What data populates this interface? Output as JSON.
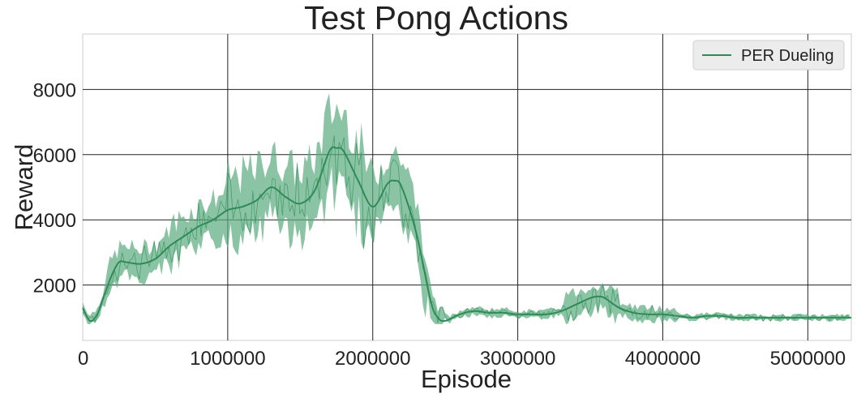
{
  "chart_data": {
    "type": "line",
    "title": "Test Pong Actions",
    "xlabel": "Episode",
    "ylabel": "Reward",
    "xlim": [
      0,
      5300000
    ],
    "ylim": [
      300,
      9700
    ],
    "xticks": [
      0,
      1000000,
      2000000,
      3000000,
      4000000,
      5000000
    ],
    "xtick_labels": [
      "0",
      "1000000",
      "2000000",
      "3000000",
      "4000000",
      "5000000"
    ],
    "yticks": [
      2000,
      4000,
      6000,
      8000
    ],
    "ytick_labels": [
      "2000",
      "4000",
      "6000",
      "8000"
    ],
    "grid": true,
    "legend_position": "top-right",
    "colors": {
      "series": "#2e8b57",
      "band": "#5aab7e",
      "grid": "#222222",
      "frame": "#cccccc"
    },
    "series": [
      {
        "name": "PER Dueling",
        "x": [
          0,
          50000,
          100000,
          150000,
          200000,
          250000,
          300000,
          400000,
          500000,
          600000,
          700000,
          800000,
          900000,
          1000000,
          1100000,
          1200000,
          1300000,
          1400000,
          1500000,
          1600000,
          1700000,
          1750000,
          1800000,
          1900000,
          2000000,
          2100000,
          2150000,
          2200000,
          2300000,
          2400000,
          2450000,
          2500000,
          2600000,
          2700000,
          2800000,
          2900000,
          3000000,
          3100000,
          3200000,
          3300000,
          3400000,
          3500000,
          3550000,
          3600000,
          3700000,
          3800000,
          3900000,
          4000000,
          4100000,
          4200000,
          4300000,
          4400000,
          4500000,
          4600000,
          4800000,
          5000000,
          5200000,
          5300000
        ],
        "y": [
          1300,
          900,
          1100,
          1700,
          2300,
          2700,
          2700,
          2650,
          2800,
          3200,
          3500,
          3800,
          4000,
          4300,
          4400,
          4600,
          5000,
          4700,
          4500,
          4900,
          6100,
          6200,
          6100,
          5200,
          4400,
          5100,
          5200,
          5000,
          3600,
          1500,
          1000,
          900,
          1100,
          1200,
          1150,
          1150,
          1100,
          1100,
          1100,
          1200,
          1400,
          1600,
          1650,
          1600,
          1300,
          1150,
          1100,
          1100,
          1050,
          1000,
          1050,
          1050,
          1000,
          1000,
          1000,
          1000,
          1000,
          1000
        ]
      }
    ]
  }
}
